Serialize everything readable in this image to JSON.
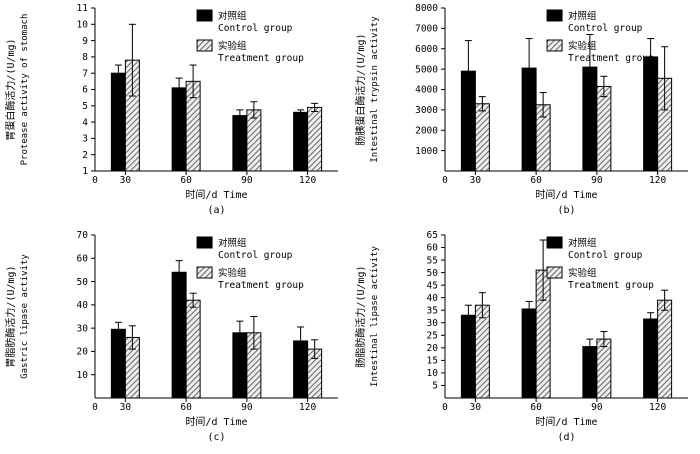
{
  "figure": {
    "background": "#ffffff"
  },
  "colors": {
    "axis": "#000000",
    "bar_solid": "#000000",
    "bar_hatch_line": "#666666",
    "bar_hatch_bg": "#eeeeee"
  },
  "chart_data": [
    {
      "id": "a",
      "type": "bar",
      "sub_label": "(a)",
      "xlabel": "时间/d Time",
      "ylabel_cn": "胃蛋白酶活力/(U/mg)",
      "ylabel_en": "Protease activity of stomach",
      "origin_label": "0",
      "ylim": [
        1,
        11
      ],
      "yticks": [
        1,
        2,
        3,
        4,
        5,
        6,
        7,
        8,
        9,
        10,
        11
      ],
      "categories": [
        "30",
        "60",
        "90",
        "120"
      ],
      "legend_position": "top-right",
      "grid": false,
      "series": [
        {
          "name_cn": "对照组",
          "name_en": "Control group",
          "style": "solid",
          "values": [
            7.0,
            6.1,
            4.4,
            4.6
          ],
          "errors": [
            0.5,
            0.6,
            0.35,
            0.15
          ]
        },
        {
          "name_cn": "实验组",
          "name_en": "Treatment group",
          "style": "hatch",
          "values": [
            7.8,
            6.5,
            4.75,
            4.9
          ],
          "errors": [
            2.2,
            1.0,
            0.5,
            0.25
          ]
        }
      ]
    },
    {
      "id": "b",
      "type": "bar",
      "sub_label": "(b)",
      "xlabel": "时间/d Time",
      "ylabel_cn": "肠胰蛋白酶活力/(U/mg)",
      "ylabel_en": "Intestinal trypsin activity",
      "origin_label": "0",
      "ylim": [
        0,
        8000
      ],
      "yticks": [
        1000,
        2000,
        3000,
        4000,
        5000,
        6000,
        7000,
        8000
      ],
      "categories": [
        "30",
        "60",
        "90",
        "120"
      ],
      "legend_position": "top-right",
      "grid": false,
      "series": [
        {
          "name_cn": "对照组",
          "name_en": "Control group",
          "style": "solid",
          "values": [
            4900,
            5050,
            5100,
            5600
          ],
          "errors": [
            1500,
            1450,
            1600,
            900
          ]
        },
        {
          "name_cn": "实验组",
          "name_en": "Treatment group",
          "style": "hatch",
          "values": [
            3300,
            3250,
            4150,
            4550
          ],
          "errors": [
            350,
            600,
            500,
            1550
          ]
        }
      ]
    },
    {
      "id": "c",
      "type": "bar",
      "sub_label": "(c)",
      "xlabel": "时间/d Time",
      "ylabel_cn": "胃脂肪酶活力/(U/mg)",
      "ylabel_en": "Gastric lipase activity",
      "origin_label": "0",
      "ylim": [
        0,
        70
      ],
      "yticks": [
        10,
        20,
        30,
        40,
        50,
        60,
        70
      ],
      "categories": [
        "30",
        "60",
        "90",
        "120"
      ],
      "legend_position": "top-right",
      "grid": false,
      "series": [
        {
          "name_cn": "对照组",
          "name_en": "Control group",
          "style": "solid",
          "values": [
            29.5,
            54,
            28,
            24.5
          ],
          "errors": [
            3,
            5,
            5,
            6
          ]
        },
        {
          "name_cn": "实验组",
          "name_en": "Treatment group",
          "style": "hatch",
          "values": [
            26,
            42,
            28,
            21
          ],
          "errors": [
            5,
            3,
            7,
            4
          ]
        }
      ]
    },
    {
      "id": "d",
      "type": "bar",
      "sub_label": "(d)",
      "xlabel": "时间/d Time",
      "ylabel_cn": "肠脂肪酶活力/(U/mg)",
      "ylabel_en": "Intestinal lipase activity",
      "origin_label": "0",
      "ylim": [
        0,
        65
      ],
      "yticks": [
        5,
        10,
        15,
        20,
        25,
        30,
        35,
        40,
        45,
        50,
        55,
        60,
        65
      ],
      "categories": [
        "30",
        "60",
        "90",
        "120"
      ],
      "legend_position": "top-right",
      "grid": false,
      "series": [
        {
          "name_cn": "对照组",
          "name_en": "Control group",
          "style": "solid",
          "values": [
            33,
            35.5,
            20.5,
            31.5
          ],
          "errors": [
            4,
            3,
            3,
            2.5
          ]
        },
        {
          "name_cn": "实验组",
          "name_en": "Treatment group",
          "style": "hatch",
          "values": [
            37,
            51,
            23.5,
            39
          ],
          "errors": [
            5,
            12,
            3,
            4
          ]
        }
      ]
    }
  ]
}
